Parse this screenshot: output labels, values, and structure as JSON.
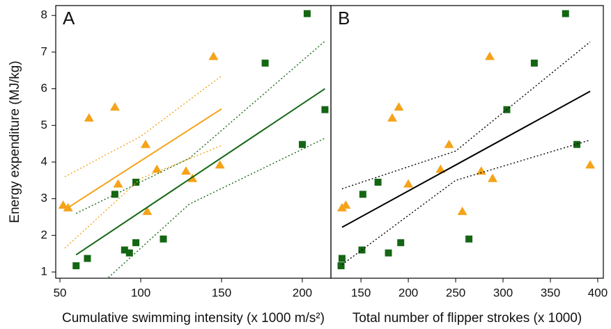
{
  "chart_data": [
    {
      "type": "scatter",
      "panel_label": "A",
      "x_label": "Cumulative swimming intensity (x 1000 m/s²)",
      "y_label": "Energy expenditure (MJ/kg)",
      "xlim": [
        47.4,
        217.7
      ],
      "xticks": [
        50,
        100,
        150,
        200
      ],
      "ylim": [
        0.83,
        8.27
      ],
      "yticks": [
        1,
        2,
        3,
        4,
        5,
        6,
        7,
        8
      ],
      "series": [
        {
          "marker": "triangle",
          "color": "#f5a31a",
          "x": [
            52,
            55,
            68,
            84,
            86,
            103,
            104,
            110,
            128,
            132,
            145,
            149
          ],
          "values": [
            2.82,
            2.75,
            5.2,
            5.5,
            3.4,
            4.48,
            2.65,
            3.8,
            3.75,
            3.55,
            6.88,
            3.92
          ]
        },
        {
          "marker": "square",
          "color": "#146614",
          "x": [
            60,
            67,
            84,
            90,
            93,
            97,
            97,
            114,
            177,
            200,
            203,
            214
          ],
          "values": [
            1.17,
            1.37,
            3.12,
            1.6,
            1.52,
            3.45,
            1.8,
            1.9,
            6.7,
            4.48,
            8.05,
            5.43
          ]
        },
        {
          "line": "solid",
          "color": "#f5a31a",
          "x": [
            53,
            150
          ],
          "values": [
            2.7,
            5.45
          ]
        },
        {
          "line": "dotted",
          "color": "#f5a31a",
          "x": [
            53,
            100,
            150
          ],
          "values": [
            3.6,
            4.7,
            6.35
          ]
        },
        {
          "line": "dotted",
          "color": "#f5a31a",
          "x": [
            53,
            100,
            150
          ],
          "values": [
            1.65,
            3.55,
            4.45
          ]
        },
        {
          "line": "solid",
          "color": "#146614",
          "x": [
            60,
            214
          ],
          "values": [
            1.47,
            6.0
          ]
        },
        {
          "line": "dotted",
          "color": "#146614",
          "x": [
            60,
            130,
            214
          ],
          "values": [
            2.6,
            4.1,
            7.3
          ]
        },
        {
          "line": "dotted",
          "color": "#146614",
          "x": [
            80,
            130,
            214
          ],
          "values": [
            0.85,
            2.85,
            4.65
          ]
        }
      ]
    },
    {
      "type": "scatter",
      "panel_label": "B",
      "x_label": "Total number of flipper strokes (x 1000)",
      "xlim": [
        118.3,
        405.9
      ],
      "xticks": [
        150,
        200,
        250,
        300,
        350,
        400
      ],
      "ylim": [
        0.83,
        8.27
      ],
      "series": [
        {
          "marker": "triangle",
          "color": "#f5a31a",
          "x": [
            130,
            134,
            183,
            190,
            200,
            243,
            234,
            257,
            277,
            286,
            289,
            392
          ],
          "values": [
            2.75,
            2.82,
            5.2,
            5.5,
            3.4,
            4.48,
            3.8,
            2.65,
            3.75,
            6.88,
            3.55,
            3.92
          ]
        },
        {
          "marker": "square",
          "color": "#146614",
          "x": [
            129,
            130,
            152,
            151,
            168,
            179,
            192,
            264,
            304,
            333,
            366,
            378
          ],
          "values": [
            1.17,
            1.37,
            3.12,
            1.6,
            3.45,
            1.52,
            1.8,
            1.9,
            5.43,
            6.7,
            8.05,
            4.48
          ]
        },
        {
          "line": "solid",
          "color": "#000000",
          "x": [
            130,
            392
          ],
          "values": [
            2.22,
            5.93
          ]
        },
        {
          "line": "dotted",
          "color": "#000000",
          "x": [
            130,
            250,
            392
          ],
          "values": [
            3.27,
            4.3,
            7.28
          ]
        },
        {
          "line": "dotted",
          "color": "#000000",
          "x": [
            130,
            250,
            392
          ],
          "values": [
            1.2,
            3.5,
            4.6
          ]
        }
      ]
    }
  ]
}
